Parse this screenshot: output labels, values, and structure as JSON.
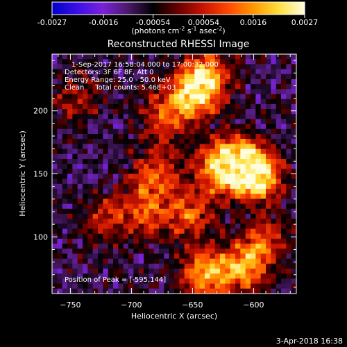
{
  "colorbar": {
    "ticks": [
      -0.0027,
      -0.0016,
      -0.00054,
      0.00054,
      0.0016,
      0.0027
    ],
    "tick_labels": [
      "-0.0027",
      "-0.0016",
      "-0.00054",
      "0.00054",
      "0.0016",
      "0.0027"
    ],
    "range": [
      -0.0027,
      0.0027
    ],
    "stops": [
      "#0000c8",
      "#3a10e8",
      "#7a22d8",
      "#4b1a6a",
      "#000000",
      "#6a0000",
      "#c81400",
      "#ff4a00",
      "#ff9a00",
      "#ffe040",
      "#ffffe0"
    ]
  },
  "chart_data": {
    "type": "heatmap",
    "title": "Reconstructed RHESSI Image",
    "xlabel": "Heliocentric X (arcsec)",
    "ylabel": "Heliocentric Y (arcsec)",
    "colorbar_label_parts": [
      "(photons cm",
      "-2",
      " s",
      "-1",
      " asec",
      "-2",
      ")"
    ],
    "xlim": [
      -765,
      -565
    ],
    "ylim": [
      55,
      245
    ],
    "xticks": [
      -750,
      -700,
      -650,
      -600
    ],
    "xtick_labels": [
      "−750",
      "−700",
      "−650",
      "−600"
    ],
    "yticks": [
      100,
      150,
      200
    ],
    "ytick_labels": [
      "100",
      "150",
      "200"
    ],
    "annotations": [
      "1-Sep-2017 16:58:04.000 to 17:00:32.000",
      "Detectors: 3F 6F 8F, Att 0",
      "Energy Range: 25.0 - 50.0 keV",
      "Clean     Total counts: 5.46E+03"
    ],
    "peak_label": "Position of Peak = [-595,144]",
    "peak": [
      -595,
      144
    ],
    "sources": [
      {
        "x": -597,
        "y": 148,
        "strength": 1.0
      },
      {
        "x": -612,
        "y": 160,
        "strength": 0.8
      },
      {
        "x": -628,
        "y": 154,
        "strength": 0.7
      },
      {
        "x": -648,
        "y": 214,
        "strength": 0.85
      },
      {
        "x": -638,
        "y": 230,
        "strength": 0.6
      },
      {
        "x": -672,
        "y": 196,
        "strength": 0.55
      },
      {
        "x": -680,
        "y": 150,
        "strength": 0.55
      },
      {
        "x": -688,
        "y": 120,
        "strength": 0.5
      },
      {
        "x": -652,
        "y": 118,
        "strength": 0.55
      },
      {
        "x": -640,
        "y": 70,
        "strength": 0.75
      },
      {
        "x": -610,
        "y": 75,
        "strength": 0.7
      },
      {
        "x": -590,
        "y": 95,
        "strength": 0.5
      },
      {
        "x": -720,
        "y": 115,
        "strength": 0.4
      },
      {
        "x": -745,
        "y": 210,
        "strength": 0.35
      }
    ]
  },
  "footer": {
    "date_label": "3-Apr-2018 16:38"
  }
}
